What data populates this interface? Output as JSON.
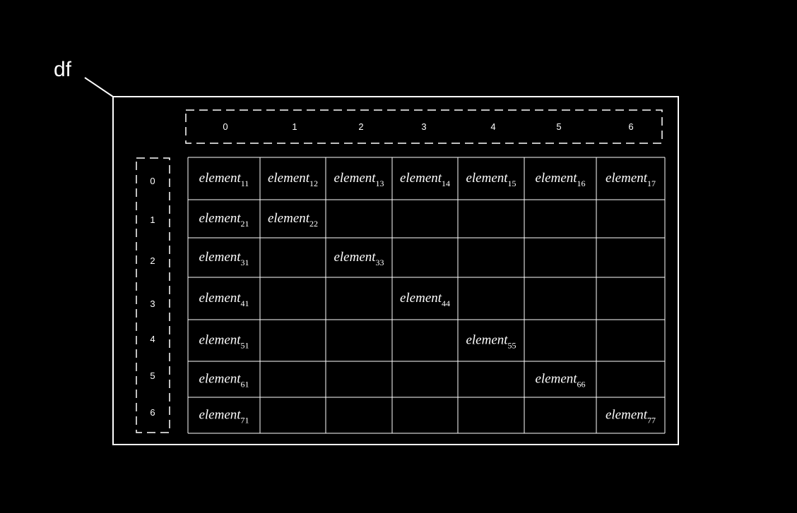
{
  "diagram": {
    "callout_label": "df",
    "column_index_labels": [
      "0",
      "1",
      "2",
      "3",
      "4",
      "5",
      "6"
    ],
    "row_index_labels": [
      "0",
      "1",
      "2",
      "3",
      "4",
      "5",
      "6"
    ],
    "cell_base_text": "element",
    "cells": [
      {
        "row": 0,
        "col": 0,
        "sub": "11"
      },
      {
        "row": 0,
        "col": 1,
        "sub": "12"
      },
      {
        "row": 0,
        "col": 2,
        "sub": "13"
      },
      {
        "row": 0,
        "col": 3,
        "sub": "14"
      },
      {
        "row": 0,
        "col": 4,
        "sub": "15"
      },
      {
        "row": 0,
        "col": 5,
        "sub": "16"
      },
      {
        "row": 0,
        "col": 6,
        "sub": "17"
      },
      {
        "row": 1,
        "col": 0,
        "sub": "21"
      },
      {
        "row": 1,
        "col": 1,
        "sub": "22"
      },
      {
        "row": 2,
        "col": 0,
        "sub": "31"
      },
      {
        "row": 2,
        "col": 2,
        "sub": "33"
      },
      {
        "row": 3,
        "col": 0,
        "sub": "41"
      },
      {
        "row": 3,
        "col": 3,
        "sub": "44"
      },
      {
        "row": 4,
        "col": 0,
        "sub": "51"
      },
      {
        "row": 4,
        "col": 4,
        "sub": "55"
      },
      {
        "row": 5,
        "col": 0,
        "sub": "61"
      },
      {
        "row": 5,
        "col": 5,
        "sub": "66"
      },
      {
        "row": 6,
        "col": 0,
        "sub": "71"
      },
      {
        "row": 6,
        "col": 6,
        "sub": "77"
      }
    ],
    "colors": {
      "background": "#000000",
      "stroke": "#ffffff",
      "text": "#ffffff"
    }
  }
}
